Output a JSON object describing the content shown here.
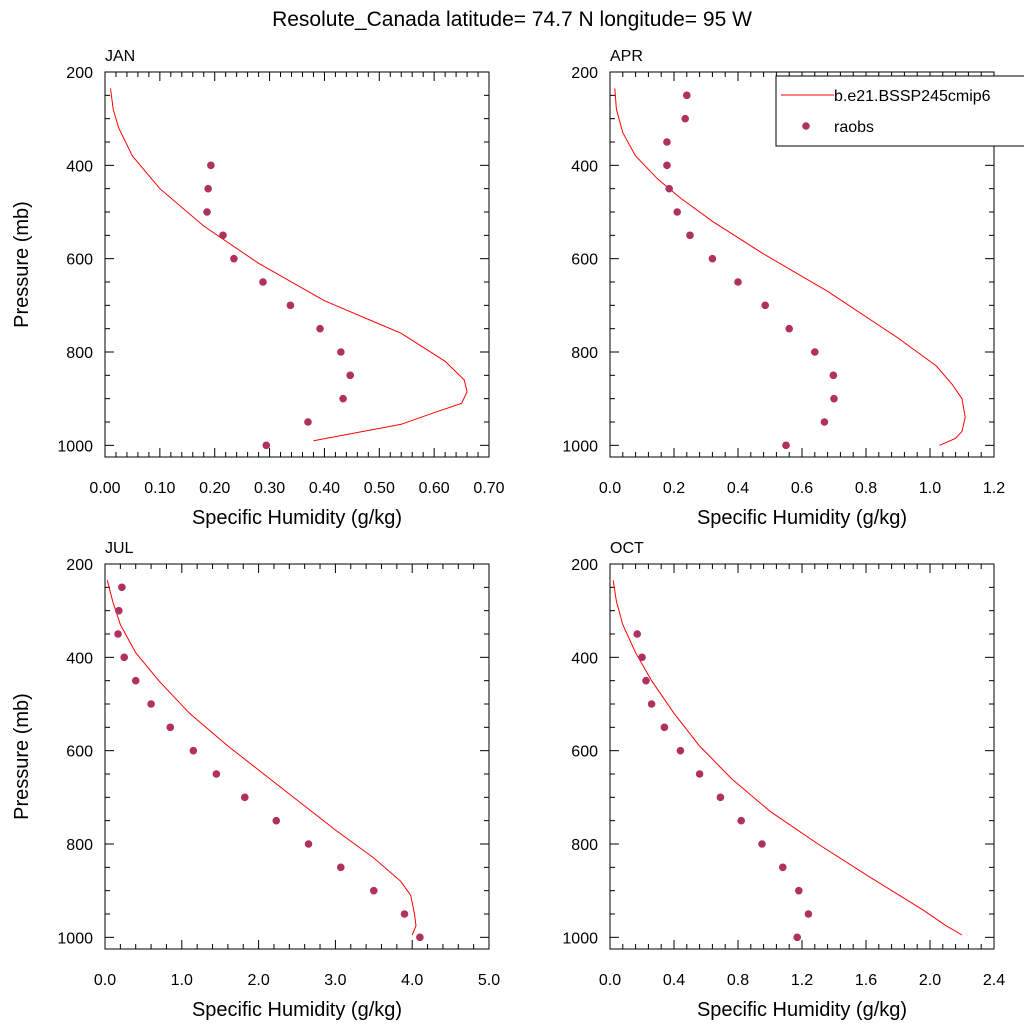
{
  "title": "Resolute_Canada  latitude= 74.7 N longitude= 95 W",
  "colors": {
    "model": "#ff0000",
    "obs": "#b03060"
  },
  "legend": {
    "model_label": "b.e21.BSSP245cmip6",
    "obs_label": "raobs",
    "panel": "APR",
    "placement": "top-right"
  },
  "chart_data": [
    {
      "type": "line",
      "panel_label": "JAN",
      "xlabel": "Specific Humidity (g/kg)",
      "ylabel": "Pressure (mb)",
      "xlim": [
        0,
        0.7
      ],
      "ylim": [
        1025,
        200
      ],
      "y_inverted": true,
      "xticks": [
        "0.00",
        "0.10",
        "0.20",
        "0.30",
        "0.40",
        "0.50",
        "0.60",
        "0.70"
      ],
      "yticks": [
        "200",
        "400",
        "600",
        "800",
        "1000"
      ],
      "series": [
        {
          "name": "b.e21.BSSP245cmip6",
          "style": "line",
          "x": [
            0.01,
            0.015,
            0.025,
            0.05,
            0.1,
            0.18,
            0.28,
            0.4,
            0.54,
            0.62,
            0.655,
            0.66,
            0.65,
            0.6,
            0.54,
            0.38
          ],
          "y": [
            235,
            280,
            320,
            380,
            450,
            530,
            610,
            690,
            760,
            820,
            860,
            885,
            910,
            930,
            955,
            990
          ]
        },
        {
          "name": "raobs",
          "style": "markers",
          "x": [
            0.193,
            0.188,
            0.186,
            0.215,
            0.235,
            0.288,
            0.338,
            0.392,
            0.43,
            0.447,
            0.434,
            0.37,
            0.294
          ],
          "y": [
            400,
            450,
            500,
            550,
            600,
            650,
            700,
            750,
            800,
            850,
            900,
            950,
            1000
          ]
        }
      ]
    },
    {
      "type": "line",
      "panel_label": "APR",
      "xlabel": "Specific Humidity (g/kg)",
      "ylabel": "",
      "xlim": [
        0,
        1.2
      ],
      "ylim": [
        1025,
        200
      ],
      "y_inverted": true,
      "xticks": [
        "0.0",
        "0.2",
        "0.4",
        "0.6",
        "0.8",
        "1.0",
        "1.2"
      ],
      "yticks": [
        "200",
        "400",
        "600",
        "800",
        "1000"
      ],
      "series": [
        {
          "name": "b.e21.BSSP245cmip6",
          "style": "line",
          "x": [
            0.015,
            0.02,
            0.04,
            0.08,
            0.15,
            0.22,
            0.32,
            0.48,
            0.68,
            0.9,
            1.02,
            1.07,
            1.1,
            1.11,
            1.1,
            1.08,
            1.03
          ],
          "y": [
            235,
            280,
            330,
            380,
            430,
            470,
            520,
            590,
            670,
            770,
            830,
            870,
            900,
            940,
            970,
            985,
            1000
          ]
        },
        {
          "name": "raobs",
          "style": "markers",
          "x": [
            0.24,
            0.235,
            0.178,
            0.178,
            0.185,
            0.21,
            0.25,
            0.32,
            0.4,
            0.485,
            0.56,
            0.64,
            0.698,
            0.7,
            0.67,
            0.55
          ],
          "y": [
            250,
            300,
            350,
            400,
            450,
            500,
            550,
            600,
            650,
            700,
            750,
            800,
            850,
            900,
            950,
            1000
          ]
        }
      ]
    },
    {
      "type": "line",
      "panel_label": "JUL",
      "xlabel": "Specific Humidity (g/kg)",
      "ylabel": "Pressure (mb)",
      "xlim": [
        0,
        5.0
      ],
      "ylim": [
        1025,
        200
      ],
      "y_inverted": true,
      "xticks": [
        "0.0",
        "1.0",
        "2.0",
        "3.0",
        "4.0",
        "5.0"
      ],
      "yticks": [
        "200",
        "400",
        "600",
        "800",
        "1000"
      ],
      "series": [
        {
          "name": "b.e21.BSSP245cmip6",
          "style": "line",
          "x": [
            0.03,
            0.1,
            0.2,
            0.4,
            0.7,
            1.1,
            1.6,
            2.3,
            3.0,
            3.5,
            3.85,
            3.98,
            4.03,
            4.05,
            4.0
          ],
          "y": [
            235,
            280,
            330,
            390,
            450,
            520,
            590,
            680,
            770,
            830,
            880,
            910,
            950,
            975,
            995
          ]
        },
        {
          "name": "raobs",
          "style": "markers",
          "x": [
            0.22,
            0.18,
            0.17,
            0.25,
            0.4,
            0.6,
            0.85,
            1.15,
            1.45,
            1.82,
            2.23,
            2.65,
            3.07,
            3.5,
            3.9,
            4.1
          ],
          "y": [
            250,
            300,
            350,
            400,
            450,
            500,
            550,
            600,
            650,
            700,
            750,
            800,
            850,
            900,
            950,
            1000
          ]
        }
      ]
    },
    {
      "type": "line",
      "panel_label": "OCT",
      "xlabel": "Specific Humidity (g/kg)",
      "ylabel": "",
      "xlim": [
        0,
        2.4
      ],
      "ylim": [
        1025,
        200
      ],
      "y_inverted": true,
      "xticks": [
        "0.0",
        "0.4",
        "0.8",
        "1.2",
        "1.6",
        "2.0",
        "2.4"
      ],
      "yticks": [
        "200",
        "400",
        "600",
        "800",
        "1000"
      ],
      "series": [
        {
          "name": "b.e21.BSSP245cmip6",
          "style": "line",
          "x": [
            0.02,
            0.04,
            0.08,
            0.16,
            0.26,
            0.4,
            0.56,
            0.76,
            1.0,
            1.3,
            1.62,
            1.95,
            2.1,
            2.2
          ],
          "y": [
            235,
            280,
            330,
            390,
            450,
            520,
            590,
            660,
            730,
            800,
            870,
            940,
            975,
            995
          ]
        },
        {
          "name": "raobs",
          "style": "markers",
          "x": [
            0.17,
            0.2,
            0.225,
            0.26,
            0.34,
            0.44,
            0.56,
            0.69,
            0.82,
            0.95,
            1.08,
            1.18,
            1.24,
            1.17
          ],
          "y": [
            350,
            400,
            450,
            500,
            550,
            600,
            650,
            700,
            750,
            800,
            850,
            900,
            950,
            1000
          ]
        }
      ]
    }
  ]
}
